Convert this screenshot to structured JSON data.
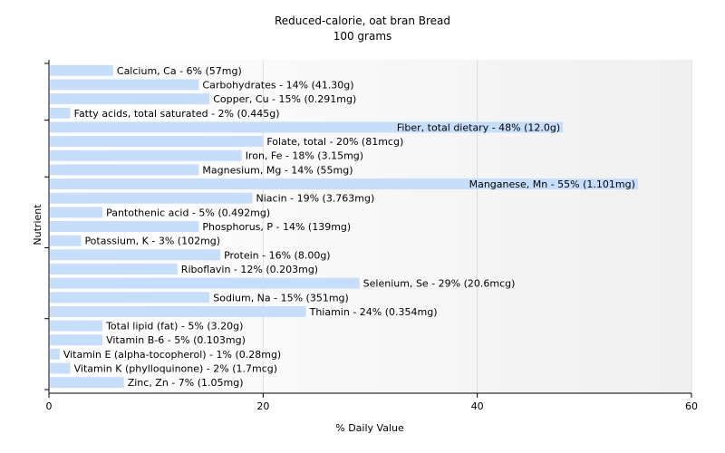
{
  "chart_data": {
    "type": "bar",
    "orientation": "horizontal",
    "title": "Reduced-calorie, oat bran Bread",
    "subtitle": "100 grams",
    "xlabel": "% Daily Value",
    "ylabel": "Nutrient",
    "xlim": [
      0,
      60
    ],
    "xticks": [
      0,
      20,
      40,
      60
    ],
    "grid": true,
    "bar_color": "#c6defa",
    "categories": [
      "Calcium, Ca",
      "Carbohydrates",
      "Copper, Cu",
      "Fatty acids, total saturated",
      "Fiber, total dietary",
      "Folate, total",
      "Iron, Fe",
      "Magnesium, Mg",
      "Manganese, Mn",
      "Niacin",
      "Pantothenic acid",
      "Phosphorus, P",
      "Potassium, K",
      "Protein",
      "Riboflavin",
      "Selenium, Se",
      "Sodium, Na",
      "Thiamin",
      "Total lipid (fat)",
      "Vitamin B-6",
      "Vitamin E (alpha-tocopherol)",
      "Vitamin K (phylloquinone)",
      "Zinc, Zn"
    ],
    "values": [
      6,
      14,
      15,
      2,
      48,
      20,
      18,
      14,
      55,
      19,
      5,
      14,
      3,
      16,
      12,
      29,
      15,
      24,
      5,
      5,
      1,
      2,
      7
    ],
    "labels": [
      "Calcium, Ca - 6% (57mg)",
      "Carbohydrates - 14% (41.30g)",
      "Copper, Cu - 15% (0.291mg)",
      "Fatty acids, total saturated - 2% (0.445g)",
      "Fiber, total dietary - 48% (12.0g)",
      "Folate, total - 20% (81mcg)",
      "Iron, Fe - 18% (3.15mg)",
      "Magnesium, Mg - 14% (55mg)",
      "Manganese, Mn - 55% (1.101mg)",
      "Niacin - 19% (3.763mg)",
      "Pantothenic acid - 5% (0.492mg)",
      "Phosphorus, P - 14% (139mg)",
      "Potassium, K - 3% (102mg)",
      "Protein - 16% (8.00g)",
      "Riboflavin - 12% (0.203mg)",
      "Selenium, Se - 29% (20.6mcg)",
      "Sodium, Na - 15% (351mg)",
      "Thiamin - 24% (0.354mg)",
      "Total lipid (fat) - 5% (3.20g)",
      "Vitamin B-6 - 5% (0.103mg)",
      "Vitamin E (alpha-tocopherol) - 1% (0.28mg)",
      "Vitamin K (phylloquinone) - 2% (1.7mcg)",
      "Zinc, Zn - 7% (1.05mg)"
    ]
  }
}
